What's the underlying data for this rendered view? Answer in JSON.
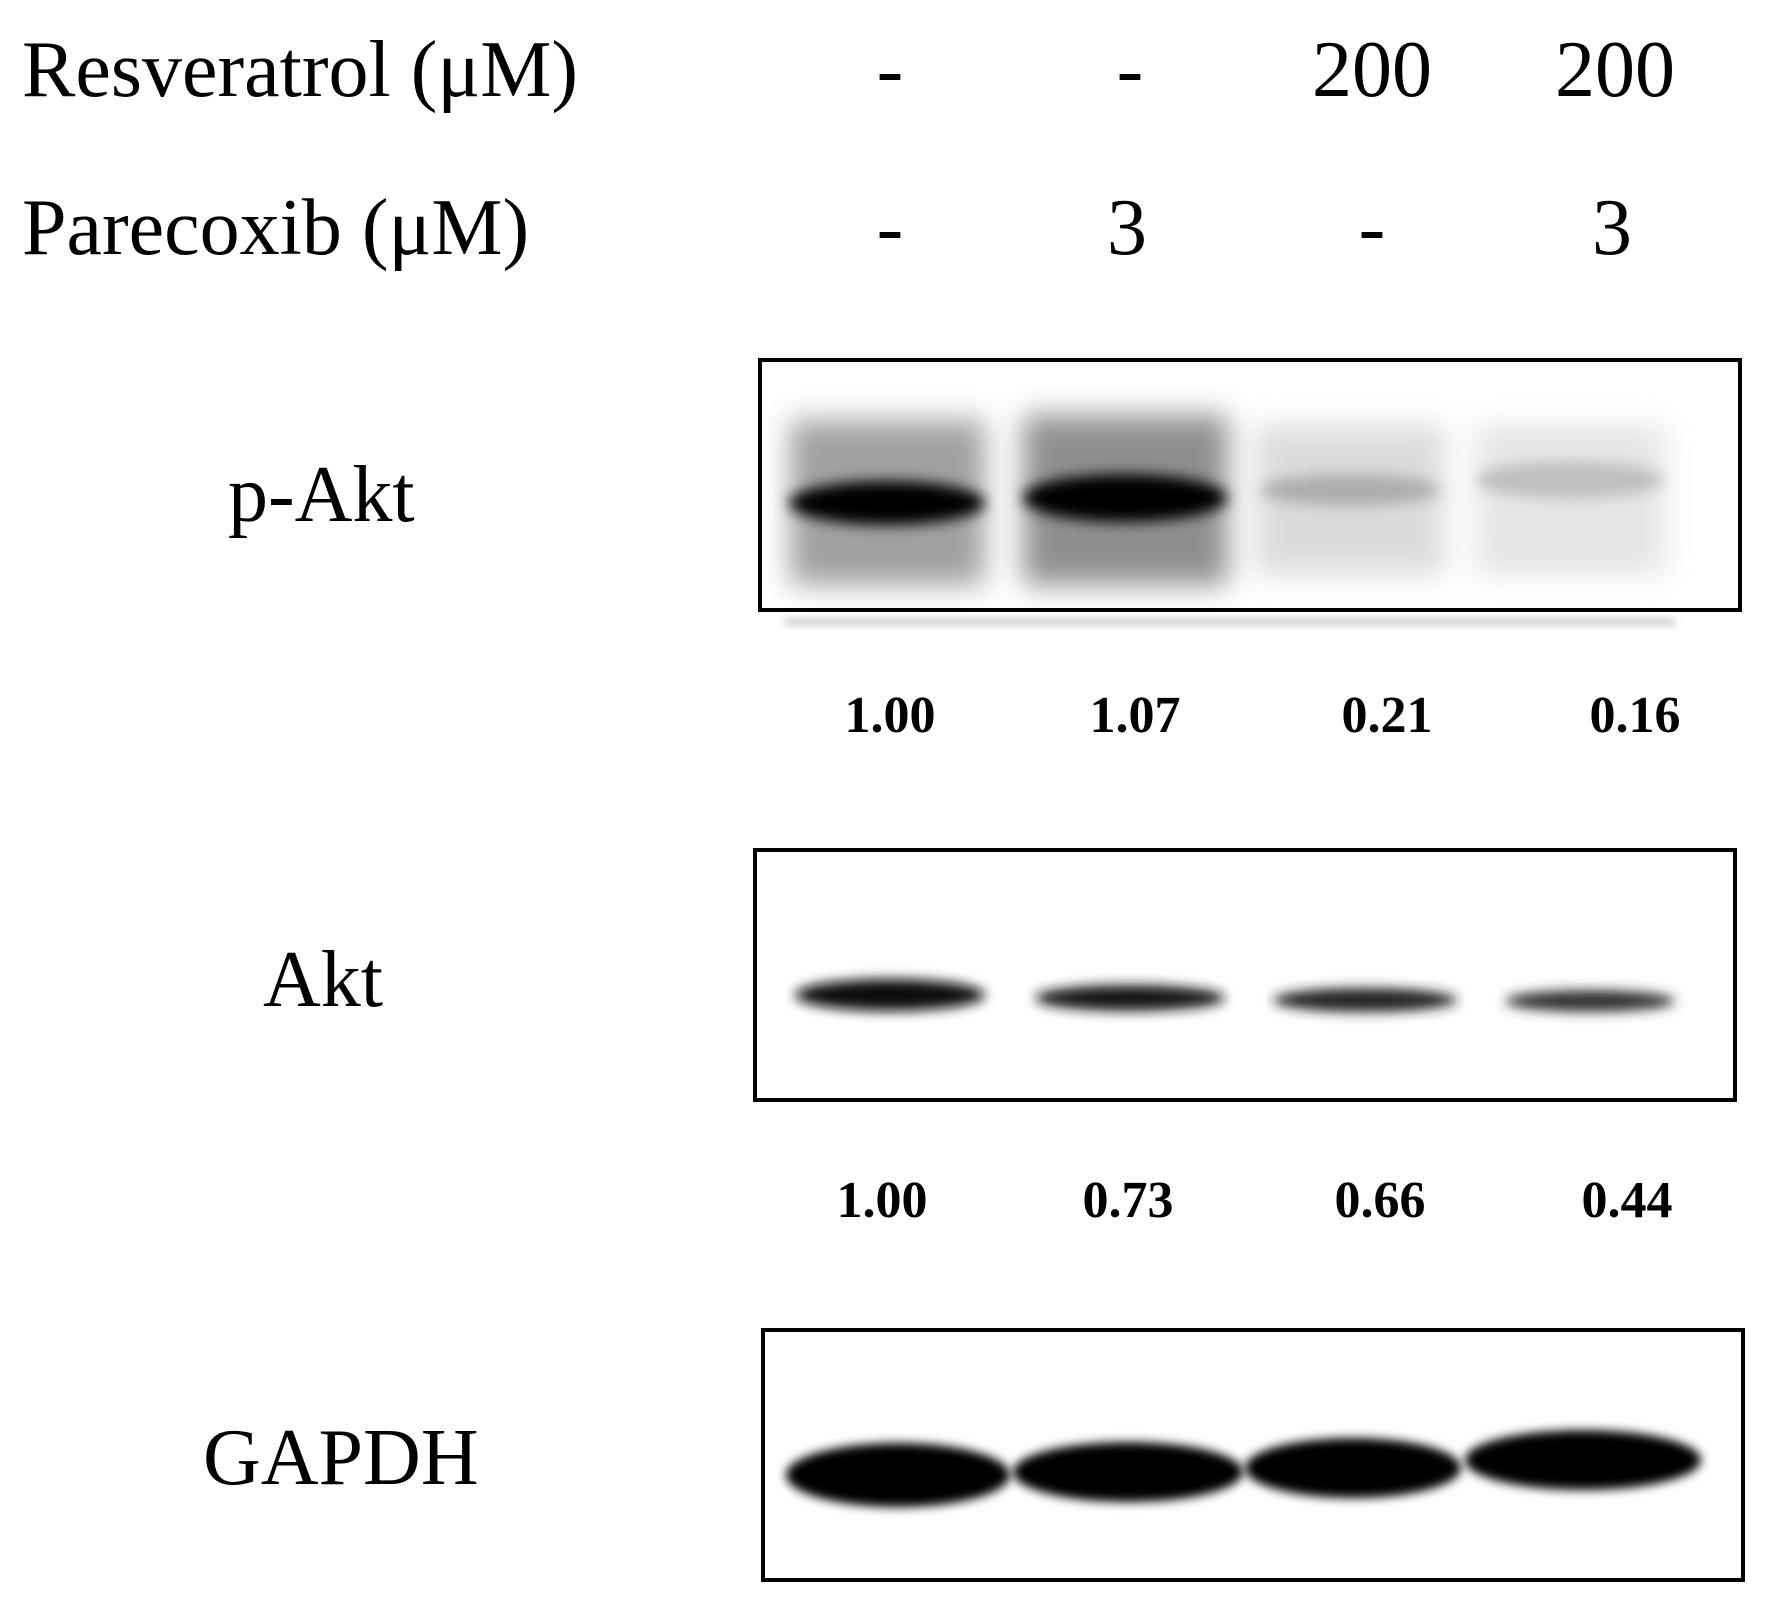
{
  "treatments": {
    "resveratrol": {
      "label": "Resveratrol (μM)",
      "values": [
        "-",
        "-",
        "200",
        "200"
      ]
    },
    "parecoxib": {
      "label": "Parecoxib (μM)",
      "values": [
        "-",
        "3",
        "-",
        "3"
      ]
    }
  },
  "blots": {
    "pakt": {
      "label": "p-Akt",
      "quant": [
        "1.00",
        "1.07",
        "0.21",
        "0.16"
      ]
    },
    "akt": {
      "label": "Akt",
      "quant": [
        "1.00",
        "0.73",
        "0.66",
        "0.44"
      ]
    },
    "gapdh": {
      "label": "GAPDH"
    }
  },
  "colors": {
    "band": "#000000",
    "frame": "#000000",
    "background": "#ffffff"
  }
}
